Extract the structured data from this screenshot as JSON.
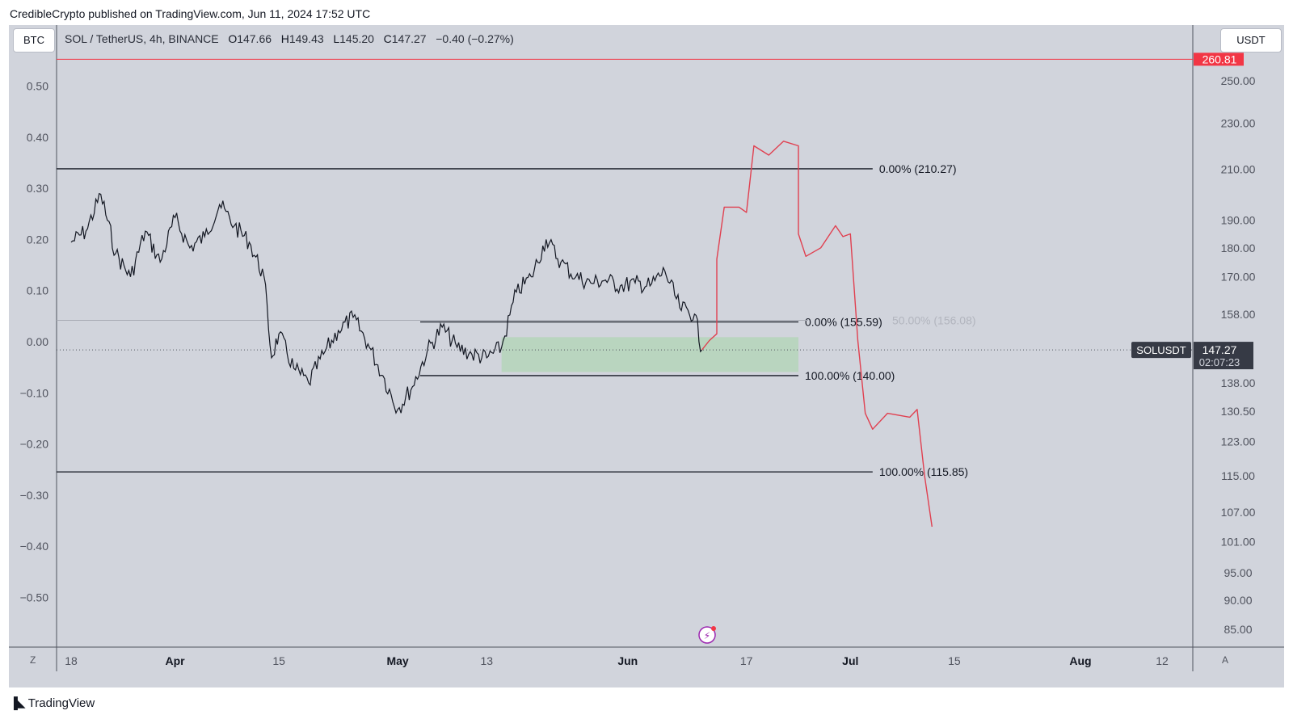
{
  "header": {
    "publisher_line": "CredibleCrypto published on TradingView.com, Jun 11, 2024 17:52 UTC"
  },
  "toolbar": {
    "left_symbol": "BTC",
    "right_currency": "USDT",
    "bottom_left": "Z",
    "bottom_right": "A"
  },
  "legend": {
    "symbol": "SOL / TetherUS, 4h, BINANCE",
    "o_label": "O",
    "o": "147.66",
    "h_label": "H",
    "h": "149.43",
    "l_label": "L",
    "l": "145.20",
    "c_label": "C",
    "c": "147.27",
    "change": "−0.40 (−0.27%)"
  },
  "footer": {
    "brand": "TradingView"
  },
  "colors": {
    "pane": "#d1d4dc",
    "candles": "#131722",
    "projection": "#e04050",
    "red_level": "#f23645",
    "zone": "#a5d6a7",
    "faint_label": "#b2b5be"
  },
  "chart_data": {
    "type": "line",
    "title": "SOL / TetherUS, 4h, BINANCE",
    "scale_right": "log",
    "ylim_right": [
      82,
      262
    ],
    "left_axis_ticks": [
      "0.50",
      "0.40",
      "0.30",
      "0.20",
      "0.10",
      "0.00",
      "−0.10",
      "−0.20",
      "−0.30",
      "−0.40",
      "−0.50"
    ],
    "right_axis_ticks": [
      250,
      230,
      210,
      190,
      180,
      170,
      158,
      147.27,
      138,
      130.5,
      123,
      115,
      107,
      101,
      95,
      90,
      85
    ],
    "right_axis_labels": [
      "250.00",
      "230.00",
      "210.00",
      "190.00",
      "180.00",
      "170.00",
      "158.00",
      "138.00",
      "130.50",
      "123.00",
      "115.00",
      "107.00",
      "101.00",
      "95.00",
      "90.00",
      "85.00"
    ],
    "x_ticks": [
      {
        "date": "2024-03-18",
        "label": "18"
      },
      {
        "date": "2024-04-01",
        "label": "Apr"
      },
      {
        "date": "2024-04-15",
        "label": "15"
      },
      {
        "date": "2024-05-01",
        "label": "May"
      },
      {
        "date": "2024-05-13",
        "label": "13"
      },
      {
        "date": "2024-06-01",
        "label": "Jun"
      },
      {
        "date": "2024-06-17",
        "label": "17"
      },
      {
        "date": "2024-07-01",
        "label": "Jul"
      },
      {
        "date": "2024-07-15",
        "label": "15"
      },
      {
        "date": "2024-08-01",
        "label": "Aug"
      },
      {
        "date": "2024-08-12",
        "label": "12"
      }
    ],
    "price_series": {
      "name": "SOLUSDT",
      "points": [
        [
          "2024-03-18",
          182
        ],
        [
          "2024-03-20",
          186
        ],
        [
          "2024-03-22",
          200
        ],
        [
          "2024-03-24",
          178
        ],
        [
          "2024-03-26",
          170
        ],
        [
          "2024-03-28",
          186
        ],
        [
          "2024-03-30",
          175
        ],
        [
          "2024-04-01",
          191
        ],
        [
          "2024-04-03",
          180
        ],
        [
          "2024-04-05",
          184
        ],
        [
          "2024-04-07",
          196
        ],
        [
          "2024-04-09",
          188
        ],
        [
          "2024-04-11",
          182
        ],
        [
          "2024-04-13",
          170
        ],
        [
          "2024-04-14",
          145
        ],
        [
          "2024-04-15",
          152
        ],
        [
          "2024-04-17",
          142
        ],
        [
          "2024-04-19",
          138
        ],
        [
          "2024-04-21",
          146
        ],
        [
          "2024-04-23",
          153
        ],
        [
          "2024-04-25",
          157
        ],
        [
          "2024-04-27",
          149
        ],
        [
          "2024-04-29",
          140
        ],
        [
          "2024-05-01",
          131
        ],
        [
          "2024-05-03",
          137
        ],
        [
          "2024-05-05",
          147
        ],
        [
          "2024-05-07",
          154
        ],
        [
          "2024-05-09",
          148
        ],
        [
          "2024-05-11",
          146
        ],
        [
          "2024-05-13",
          145
        ],
        [
          "2024-05-15",
          148
        ],
        [
          "2024-05-17",
          165
        ],
        [
          "2024-05-19",
          170
        ],
        [
          "2024-05-21",
          183
        ],
        [
          "2024-05-23",
          175
        ],
        [
          "2024-05-25",
          170
        ],
        [
          "2024-05-27",
          168
        ],
        [
          "2024-05-29",
          169
        ],
        [
          "2024-05-31",
          167
        ],
        [
          "2024-06-02",
          168
        ],
        [
          "2024-06-04",
          167
        ],
        [
          "2024-06-06",
          172
        ],
        [
          "2024-06-08",
          160
        ],
        [
          "2024-06-10",
          158
        ],
        [
          "2024-06-11",
          147.27
        ]
      ]
    },
    "projection_series": {
      "points": [
        [
          "2024-06-11",
          147.27
        ],
        [
          "2024-06-12",
          150
        ],
        [
          "2024-06-13",
          152
        ],
        [
          "2024-06-13",
          176
        ],
        [
          "2024-06-14",
          195
        ],
        [
          "2024-06-16",
          195
        ],
        [
          "2024-06-17",
          193
        ],
        [
          "2024-06-18",
          220
        ],
        [
          "2024-06-20",
          216
        ],
        [
          "2024-06-22",
          222
        ],
        [
          "2024-06-24",
          220
        ],
        [
          "2024-06-24",
          185
        ],
        [
          "2024-06-25",
          177
        ],
        [
          "2024-06-27",
          180
        ],
        [
          "2024-06-29",
          188
        ],
        [
          "2024-06-30",
          184
        ],
        [
          "2024-07-01",
          185
        ],
        [
          "2024-07-02",
          150
        ],
        [
          "2024-07-03",
          130
        ],
        [
          "2024-07-04",
          126
        ],
        [
          "2024-07-06",
          130
        ],
        [
          "2024-07-09",
          129
        ],
        [
          "2024-07-10",
          131
        ],
        [
          "2024-07-11",
          115
        ],
        [
          "2024-07-12",
          104
        ]
      ]
    },
    "levels": [
      {
        "price": 260.81,
        "label": "260.81",
        "color": "red"
      },
      {
        "price": 210.27,
        "label": "0.00% (210.27)"
      },
      {
        "price": 155.59,
        "label": "0.00% (155.59)"
      },
      {
        "price": 140.0,
        "label": "100.00% (140.00)"
      },
      {
        "price": 115.85,
        "label": "100.00% (115.85)"
      }
    ],
    "faint_level_label": "50.00% (156.08)",
    "zone": {
      "from": "2024-05-15",
      "to": "2024-06-24",
      "low": 141,
      "high": 151
    },
    "last_price": {
      "name": "SOLUSDT",
      "price": "147.27",
      "countdown": "02:07:23"
    }
  }
}
